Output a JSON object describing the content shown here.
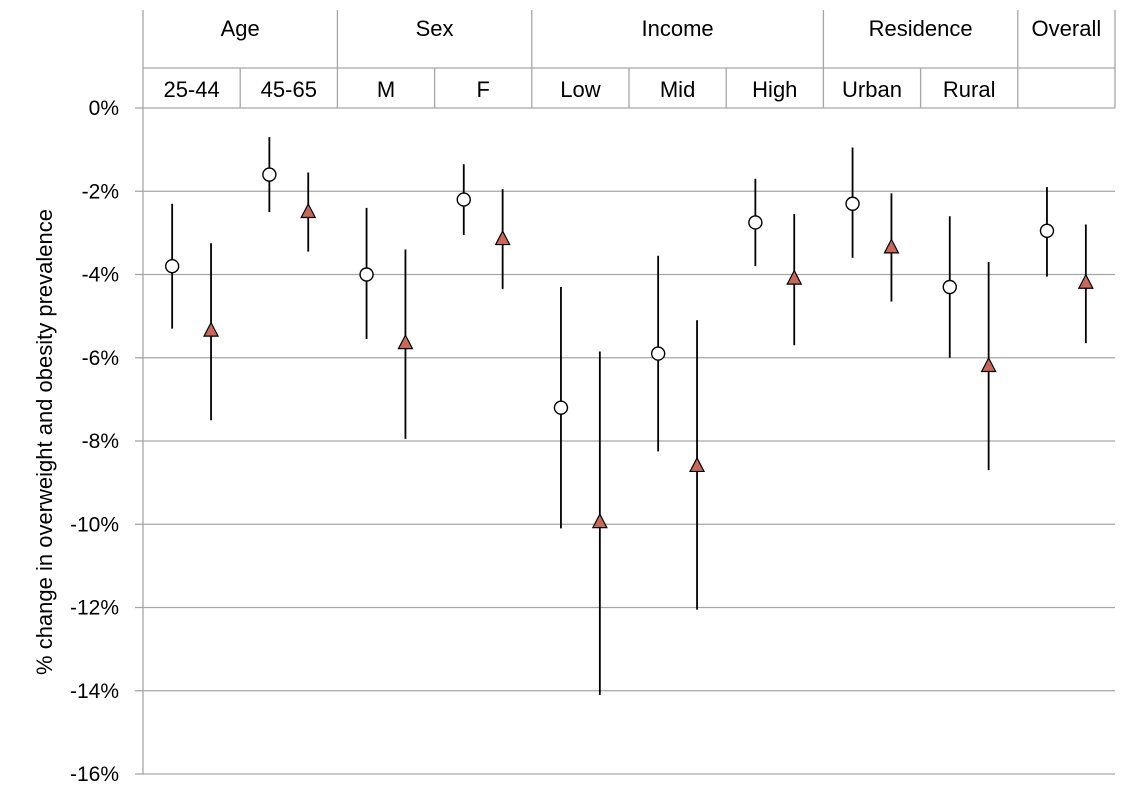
{
  "chart_data": {
    "type": "scatter",
    "ylabel": "% change in overweight and obesity prevalence",
    "ylim": [
      -16,
      0
    ],
    "yticks": [
      0,
      -2,
      -4,
      -6,
      -8,
      -10,
      -12,
      -14,
      -16
    ],
    "ytick_labels": [
      "0%",
      "-2%",
      "-4%",
      "-6%",
      "-8%",
      "-10%",
      "-12%",
      "-14%",
      "-16%"
    ],
    "grid": true,
    "groups": [
      {
        "label": "Age",
        "subgroups": [
          "25-44",
          "45-65"
        ]
      },
      {
        "label": "Sex",
        "subgroups": [
          "M",
          "F"
        ]
      },
      {
        "label": "Income",
        "subgroups": [
          "Low",
          "Mid",
          "High"
        ]
      },
      {
        "label": "Residence",
        "subgroups": [
          "Urban",
          "Rural"
        ]
      },
      {
        "label": "Overall",
        "subgroups": [
          ""
        ]
      }
    ],
    "categories": [
      "25-44",
      "45-65",
      "M",
      "F",
      "Low",
      "Mid",
      "High",
      "Urban",
      "Rural",
      "Overall"
    ],
    "series": [
      {
        "marker": "circle",
        "fill": "#ffffff",
        "values": [
          -3.8,
          -1.6,
          -4.0,
          -2.2,
          -7.2,
          -5.9,
          -2.75,
          -2.3,
          -4.3,
          -2.95
        ],
        "lower": [
          -5.3,
          -2.5,
          -5.55,
          -3.05,
          -10.1,
          -8.25,
          -3.8,
          -3.6,
          -6.0,
          -4.05
        ],
        "upper": [
          -2.3,
          -0.7,
          -2.4,
          -1.35,
          -4.3,
          -3.55,
          -1.7,
          -0.95,
          -2.6,
          -1.9
        ]
      },
      {
        "marker": "triangle",
        "fill": "#c8685a",
        "values": [
          -5.35,
          -2.5,
          -5.65,
          -3.15,
          -9.95,
          -8.6,
          -4.1,
          -3.35,
          -6.2,
          -4.2
        ],
        "lower": [
          -7.5,
          -3.45,
          -7.95,
          -4.35,
          -14.1,
          -12.05,
          -5.7,
          -4.65,
          -8.7,
          -5.65
        ],
        "upper": [
          -3.25,
          -1.55,
          -3.4,
          -1.95,
          -5.85,
          -5.1,
          -2.55,
          -2.05,
          -3.7,
          -2.8
        ]
      }
    ]
  }
}
